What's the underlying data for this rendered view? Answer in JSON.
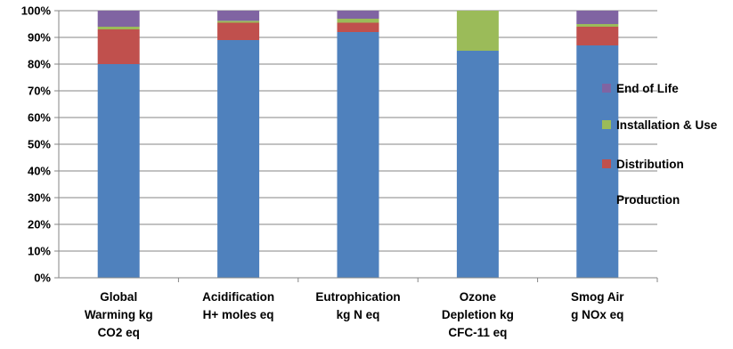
{
  "chart_data": {
    "type": "bar",
    "stacked": true,
    "title": "",
    "xlabel": "",
    "ylabel": "",
    "ylim": [
      0,
      100
    ],
    "yticks": [
      "0%",
      "10%",
      "20%",
      "30%",
      "40%",
      "50%",
      "60%",
      "70%",
      "80%",
      "90%",
      "100%"
    ],
    "grid": true,
    "legend_position": "right",
    "categories": [
      [
        "Global",
        "Warming kg",
        "CO2 eq"
      ],
      [
        "Acidification",
        "H+ moles eq"
      ],
      [
        "Eutrophication",
        "kg N eq"
      ],
      [
        "Ozone",
        "Depletion kg",
        "CFC-11 eq"
      ],
      [
        "Smog Air",
        "g NOx eq"
      ]
    ],
    "series": [
      {
        "name": "Production",
        "color": "#4F81BD",
        "values": [
          80,
          89,
          92,
          85,
          87
        ]
      },
      {
        "name": "Distribution",
        "color": "#C0504D",
        "values": [
          13,
          6.5,
          3.5,
          0,
          7
        ]
      },
      {
        "name": "Installation & Use",
        "color": "#9BBB59",
        "values": [
          1,
          0.7,
          1.5,
          15,
          1
        ]
      },
      {
        "name": "End of Life",
        "color": "#8064A2",
        "values": [
          6,
          3.8,
          3,
          0,
          5
        ]
      }
    ],
    "legend_order": [
      "End of Life",
      "Installation & Use",
      "Distribution",
      "Production"
    ]
  }
}
